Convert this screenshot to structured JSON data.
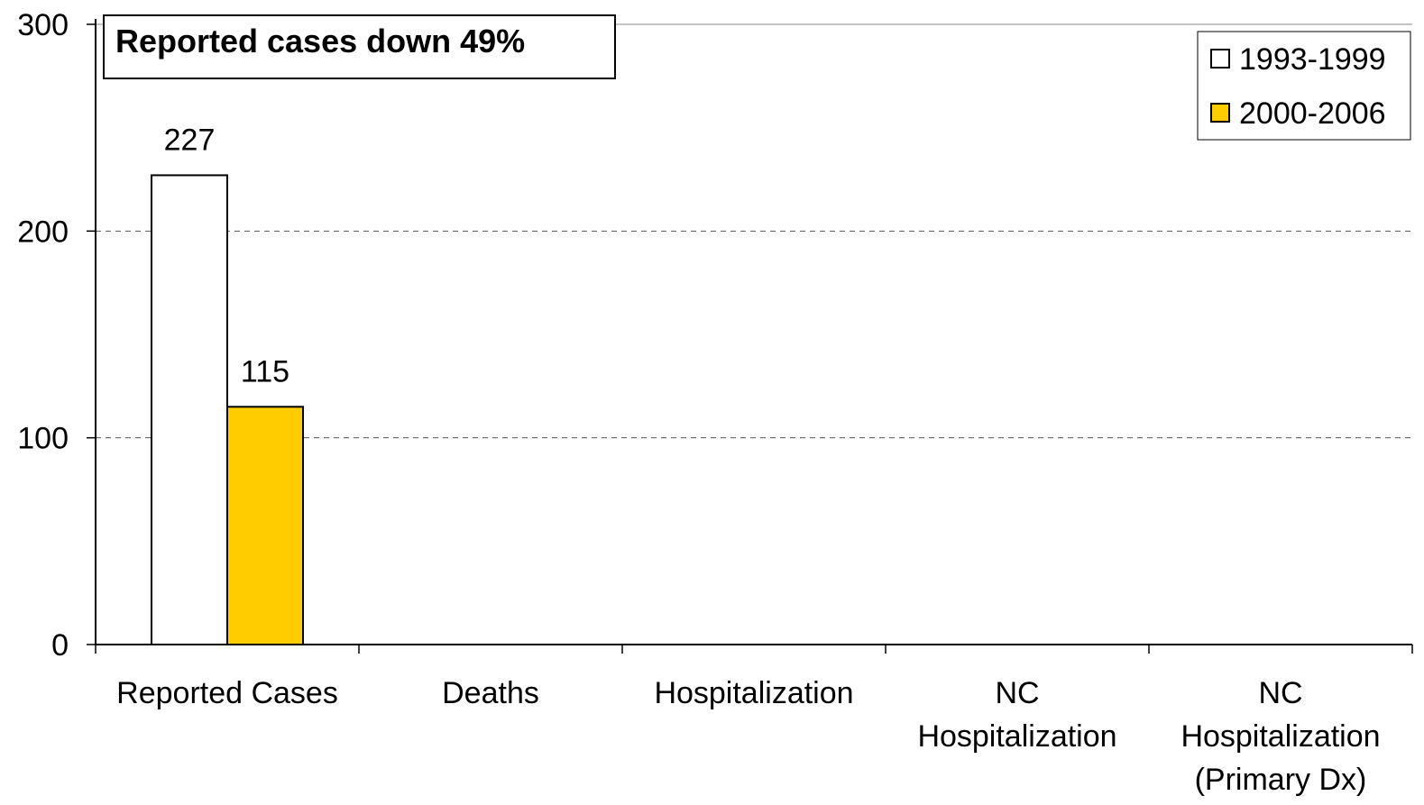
{
  "chart_data": {
    "type": "bar",
    "categories": [
      [
        "Reported Cases"
      ],
      [
        "Deaths"
      ],
      [
        "Hospitalization"
      ],
      [
        "NC",
        "Hospitalization"
      ],
      [
        "NC",
        "Hospitalization",
        "(Primary Dx)"
      ]
    ],
    "series": [
      {
        "name": "1993-1999",
        "color": "#ffffff",
        "values": [
          227,
          null,
          null,
          null,
          null
        ]
      },
      {
        "name": "2000-2006",
        "color": "#ffcc00",
        "values": [
          115,
          null,
          null,
          null,
          null
        ]
      }
    ],
    "ylim": [
      0,
      300
    ],
    "yticks": [
      0,
      100,
      200,
      300
    ],
    "grid": true,
    "legend_position": "top-right",
    "annotation": "Reported cases down 49%"
  }
}
